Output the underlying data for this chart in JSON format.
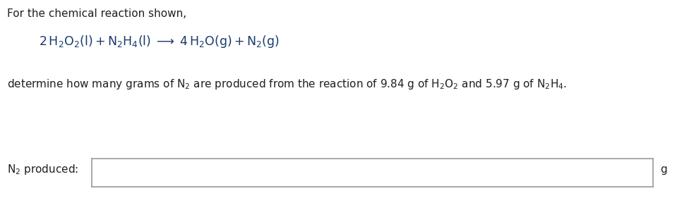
{
  "bg_color": "#ffffff",
  "text_color": "#231f20",
  "blue_color": "#1a3a6b",
  "figsize": [
    9.59,
    3.05
  ],
  "dpi": 100,
  "line1": "For the chemical reaction shown,",
  "unit": "g",
  "fs_main": 11.0,
  "fs_eq": 12.5
}
